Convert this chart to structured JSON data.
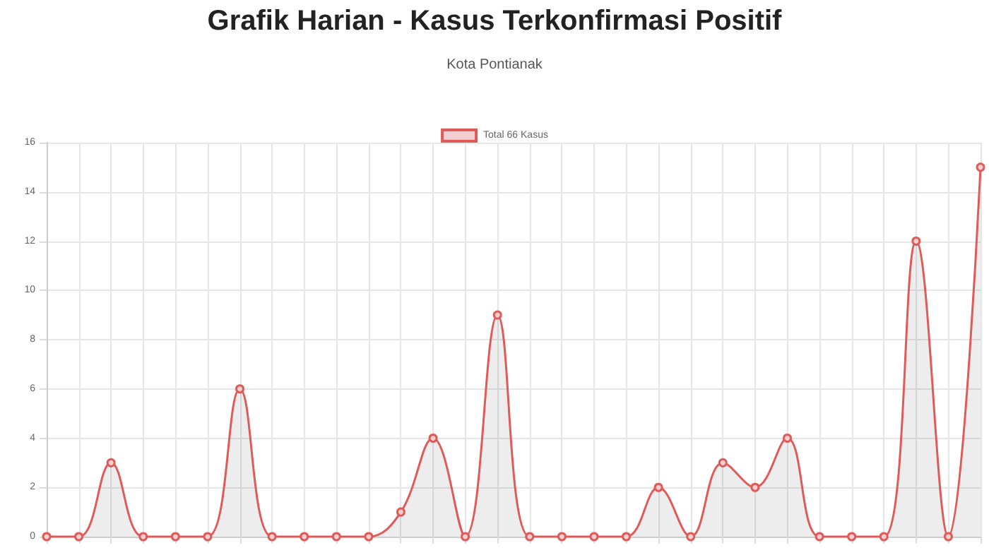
{
  "chart_data": {
    "type": "area",
    "title": "Grafik Harian - Kasus Terkonfirmasi Positif",
    "subtitle": "Kota Pontianak",
    "categories": [
      null,
      null,
      null,
      null,
      null,
      null,
      null,
      null,
      null,
      null,
      null,
      null,
      null,
      null,
      null,
      null,
      null,
      null,
      null,
      null,
      null,
      null,
      null,
      null,
      null,
      null,
      null,
      null,
      null,
      null
    ],
    "series": [
      {
        "name": "Total 66 Kasus",
        "color": "#e05a5a",
        "values": [
          0,
          0,
          3,
          0,
          0,
          0,
          6,
          0,
          0,
          0,
          0,
          1,
          4,
          0,
          9,
          0,
          0,
          0,
          0,
          2,
          0,
          3,
          2,
          4,
          0,
          0,
          0,
          12,
          0,
          15
        ]
      }
    ],
    "ylim": [
      0,
      16
    ],
    "yticks": [
      0,
      2,
      4,
      6,
      8,
      10,
      12,
      14,
      16
    ],
    "grid": true,
    "legend": "top",
    "marker": "circle",
    "line_style": "solid"
  }
}
